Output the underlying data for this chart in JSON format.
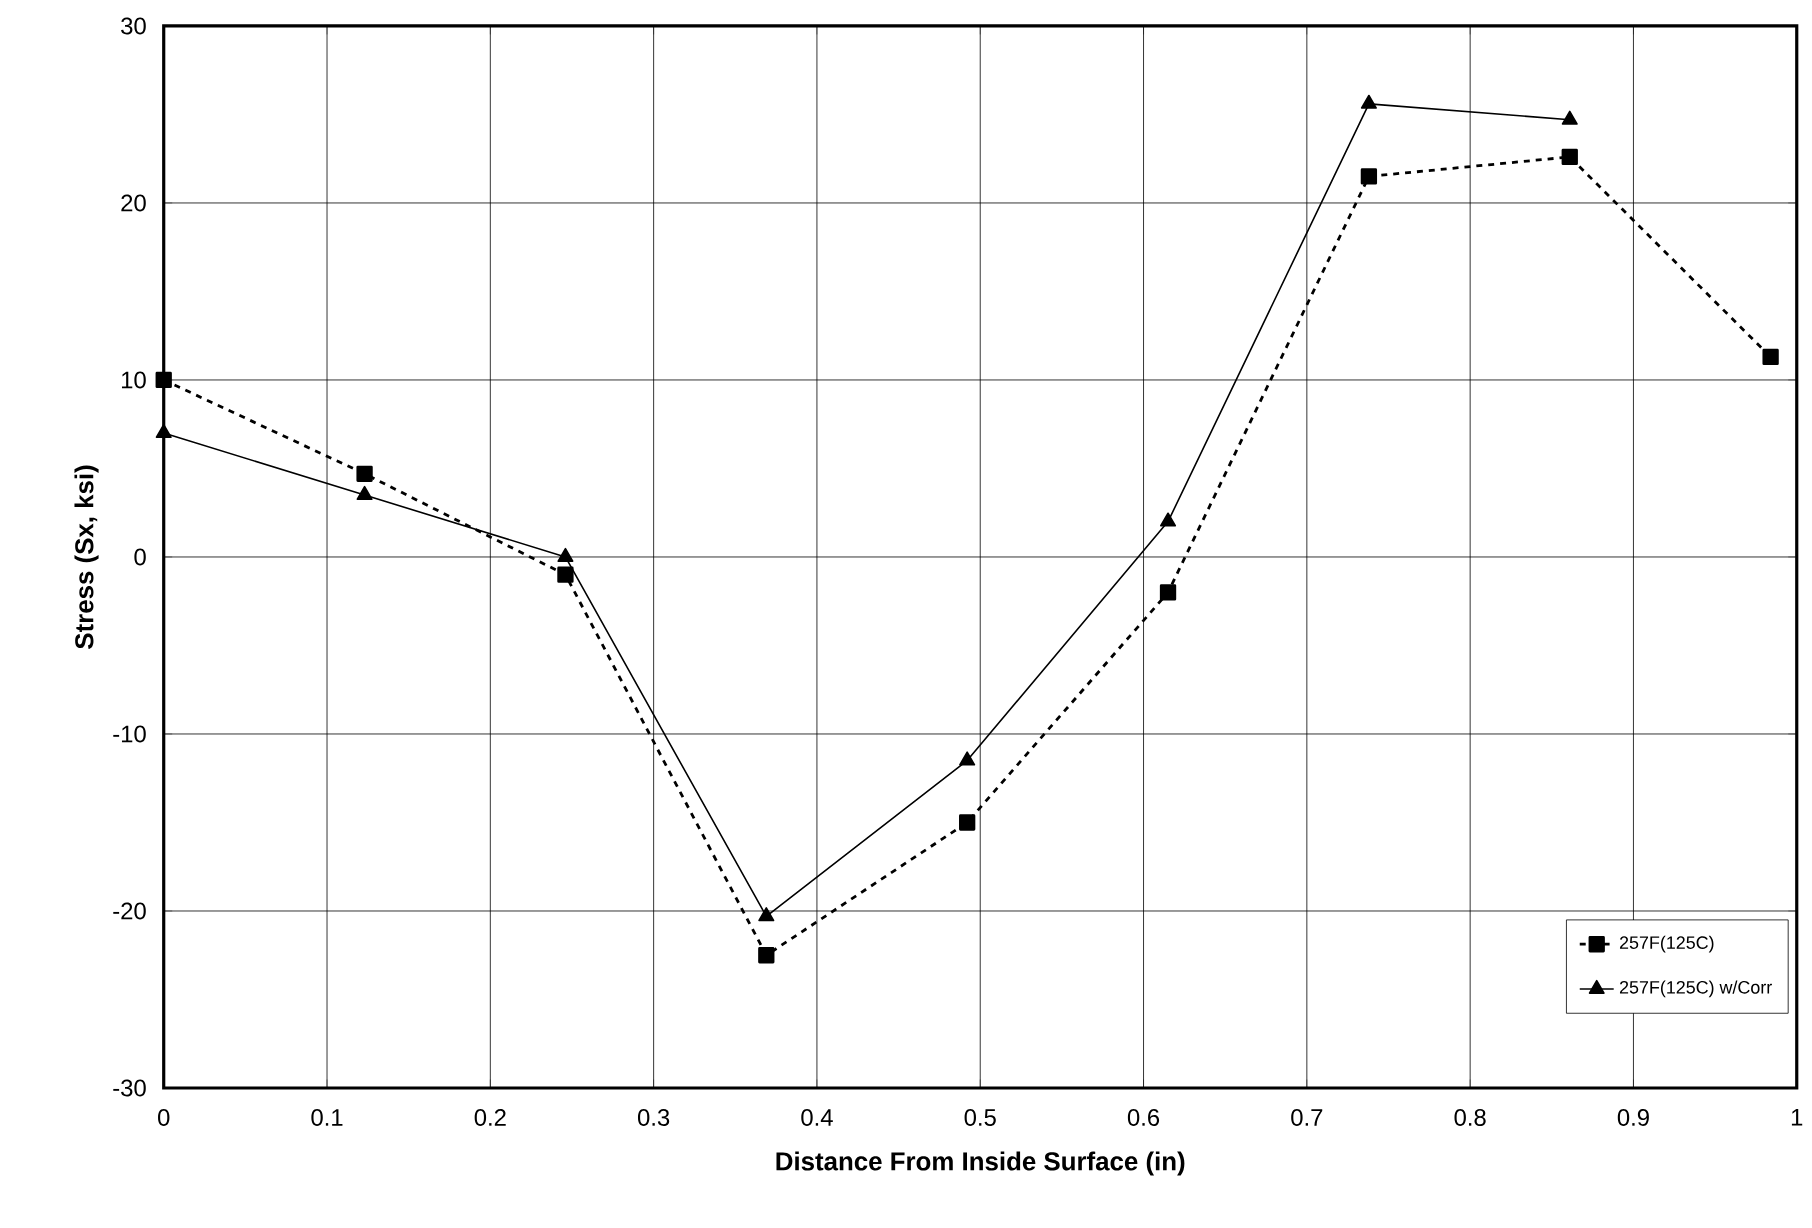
{
  "chart_data": {
    "type": "line",
    "xlabel": "Distance From Inside Surface (in)",
    "ylabel": "Stress (Sx, ksi)",
    "xlim": [
      0,
      1
    ],
    "xticks": [
      0,
      0.1,
      0.2,
      0.3,
      0.4,
      0.5,
      0.6,
      0.7,
      0.8,
      0.9,
      1
    ],
    "ylim": [
      -30,
      30
    ],
    "yticks": [
      -30,
      -20,
      -10,
      0,
      10,
      20,
      30
    ],
    "grid": true,
    "legend": "bottom right",
    "series": [
      {
        "name": "257F(125C)",
        "color": "#000000",
        "marker": "square",
        "line_style": "dashed",
        "x": [
          0,
          0.123,
          0.246,
          0.369,
          0.492,
          0.615,
          0.738,
          0.861,
          0.984
        ],
        "values": [
          10,
          4.7,
          -1,
          -22.5,
          -15,
          -2,
          21.5,
          22.6,
          11.3
        ]
      },
      {
        "name": "257F(125C) w/Corr",
        "color": "#000000",
        "marker": "triangle",
        "line_style": "solid",
        "x": [
          0,
          0.123,
          0.246,
          0.369,
          0.492,
          0.615,
          0.738,
          0.861
        ],
        "values": [
          7,
          3.5,
          0,
          -20.3,
          -11.5,
          2,
          25.6,
          24.7
        ]
      }
    ]
  }
}
